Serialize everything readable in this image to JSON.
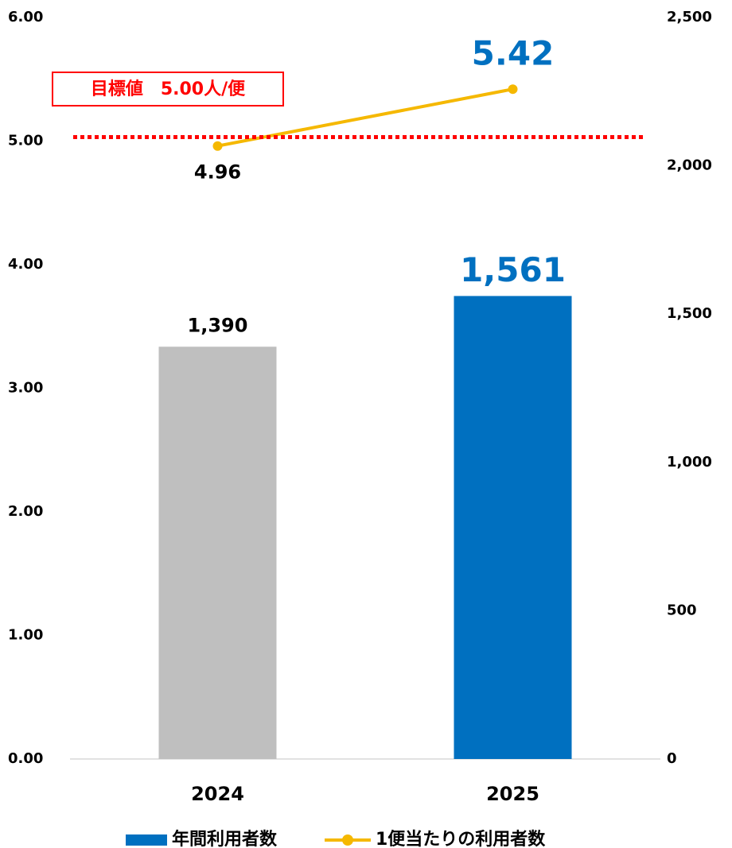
{
  "chart_data": {
    "type": "combo",
    "categories": [
      "2024",
      "2025"
    ],
    "series": [
      {
        "name": "年間利用者数",
        "type": "bar",
        "axis": "y2",
        "color": "#0070c0",
        "colors": [
          "#bfbfbf",
          "#0070c0"
        ],
        "values": [
          1390,
          1561
        ],
        "value_labels": [
          "1,390",
          "1,561"
        ]
      },
      {
        "name": "1便当たりの利用者数",
        "type": "line",
        "axis": "y",
        "color": "#f5b800",
        "values": [
          4.96,
          5.42
        ]
      }
    ],
    "ylim": [
      0,
      6
    ],
    "yticks": [
      {
        "value": 0,
        "label": "0.00"
      },
      {
        "value": 1,
        "label": "1.00"
      },
      {
        "value": 2,
        "label": "2.00"
      },
      {
        "value": 3,
        "label": "3.00"
      },
      {
        "value": 4,
        "label": "4.00"
      },
      {
        "value": 5,
        "label": "5.00"
      },
      {
        "value": 6,
        "label": "6.00"
      }
    ],
    "y2lim": [
      0,
      2500
    ],
    "y2ticks": [
      0,
      500,
      {
        "value": 1000,
        "label": "1,000"
      },
      {
        "value": 1500,
        "label": "1,500"
      },
      {
        "value": 2000,
        "label": "2,000"
      },
      {
        "value": 2500,
        "label": "2,500"
      }
    ],
    "reference_line": {
      "value": 5,
      "label": "目標値　5.00人/便",
      "color": "#ff0000"
    },
    "legend": "bottom"
  }
}
